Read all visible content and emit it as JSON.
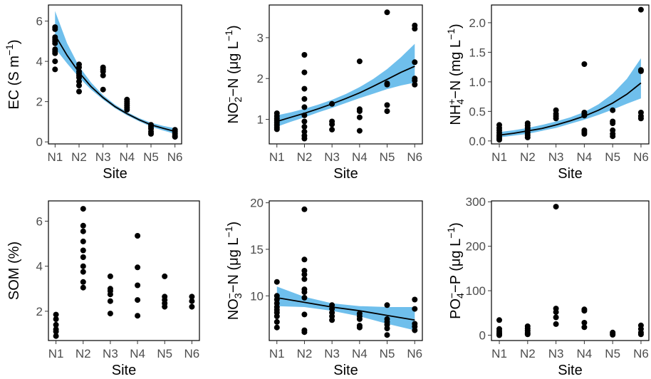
{
  "chart_data": [
    {
      "type": "scatter",
      "xlabel": "Site",
      "ylabel": {
        "pre": "EC (S m",
        "sup": "−1",
        "post": ")"
      },
      "categories": [
        "N1",
        "N2",
        "N3",
        "N4",
        "N5",
        "N6"
      ],
      "ylim": [
        -0.1,
        6.8
      ],
      "yticks": [
        0,
        2,
        4,
        6
      ],
      "points": [
        [
          1,
          5.7
        ],
        [
          1,
          5.6
        ],
        [
          1,
          5.2
        ],
        [
          1,
          5.1
        ],
        [
          1,
          5.0
        ],
        [
          1,
          4.9
        ],
        [
          1,
          4.6
        ],
        [
          1,
          4.5
        ],
        [
          1,
          4.4
        ],
        [
          1,
          4.0
        ],
        [
          1,
          3.6
        ],
        [
          2,
          3.85
        ],
        [
          2,
          3.7
        ],
        [
          2,
          3.5
        ],
        [
          2,
          3.4
        ],
        [
          2,
          3.3
        ],
        [
          2,
          3.2
        ],
        [
          2,
          3.0
        ],
        [
          2,
          2.8
        ],
        [
          2,
          2.5
        ],
        [
          3,
          3.7
        ],
        [
          3,
          3.6
        ],
        [
          3,
          3.5
        ],
        [
          3,
          3.3
        ],
        [
          3,
          2.6
        ],
        [
          4,
          2.1
        ],
        [
          4,
          2.0
        ],
        [
          4,
          1.9
        ],
        [
          4,
          1.8
        ],
        [
          4,
          1.7
        ],
        [
          4,
          1.6
        ],
        [
          5,
          0.85
        ],
        [
          5,
          0.75
        ],
        [
          5,
          0.65
        ],
        [
          5,
          0.5
        ],
        [
          5,
          0.4
        ],
        [
          6,
          0.6
        ],
        [
          6,
          0.5
        ],
        [
          6,
          0.4
        ],
        [
          6,
          0.3
        ],
        [
          6,
          0.25
        ]
      ],
      "fit": {
        "x": [
          1,
          1.5,
          2,
          2.5,
          3,
          3.5,
          4,
          4.5,
          5,
          5.5,
          6
        ],
        "y": [
          5.3,
          4.3,
          3.45,
          2.75,
          2.2,
          1.75,
          1.4,
          1.1,
          0.85,
          0.68,
          0.52
        ]
      },
      "ribbon": {
        "x": [
          1,
          1.5,
          2,
          2.5,
          3,
          3.5,
          4,
          4.5,
          5,
          5.5,
          6
        ],
        "lo": [
          4.65,
          3.9,
          3.2,
          2.6,
          2.1,
          1.67,
          1.32,
          1.02,
          0.76,
          0.57,
          0.4
        ],
        "hi": [
          6.5,
          4.9,
          3.75,
          2.95,
          2.32,
          1.85,
          1.48,
          1.18,
          0.95,
          0.8,
          0.68
        ]
      }
    },
    {
      "type": "scatter",
      "xlabel": "Site",
      "ylabel": {
        "pre": "NO",
        "sub": "2",
        "sup": "−",
        "post": "−N (μg L",
        "sup2": "−1",
        "post2": ")"
      },
      "categories": [
        "N1",
        "N2",
        "N3",
        "N4",
        "N5",
        "N6"
      ],
      "ylim": [
        0.4,
        3.8
      ],
      "yticks": [
        1,
        2,
        3
      ],
      "points": [
        [
          1,
          1.15
        ],
        [
          1,
          1.08
        ],
        [
          1,
          1.02
        ],
        [
          1,
          0.98
        ],
        [
          1,
          0.93
        ],
        [
          1,
          0.88
        ],
        [
          1,
          0.85
        ],
        [
          1,
          0.8
        ],
        [
          1,
          0.76
        ],
        [
          2,
          2.58
        ],
        [
          2,
          2.15
        ],
        [
          2,
          1.75
        ],
        [
          2,
          1.5
        ],
        [
          2,
          1.3
        ],
        [
          2,
          1.1
        ],
        [
          2,
          0.95
        ],
        [
          2,
          0.82
        ],
        [
          2,
          0.7
        ],
        [
          2,
          0.6
        ],
        [
          2,
          0.53
        ],
        [
          3,
          1.38
        ],
        [
          3,
          0.95
        ],
        [
          3,
          0.88
        ],
        [
          3,
          0.75
        ],
        [
          4,
          2.42
        ],
        [
          4,
          1.25
        ],
        [
          4,
          1.2
        ],
        [
          4,
          1.05
        ],
        [
          4,
          0.72
        ],
        [
          5,
          3.62
        ],
        [
          5,
          1.88
        ],
        [
          5,
          1.85
        ],
        [
          5,
          1.35
        ],
        [
          5,
          1.2
        ],
        [
          6,
          3.3
        ],
        [
          6,
          3.22
        ],
        [
          6,
          2.4
        ],
        [
          6,
          2.0
        ],
        [
          6,
          1.95
        ],
        [
          6,
          1.85
        ]
      ],
      "fit": {
        "x": [
          1,
          1.5,
          2,
          2.5,
          3,
          3.5,
          4,
          4.5,
          5,
          5.5,
          6
        ],
        "y": [
          0.95,
          1.05,
          1.15,
          1.26,
          1.38,
          1.51,
          1.65,
          1.81,
          1.98,
          2.15,
          2.3
        ]
      },
      "ribbon": {
        "x": [
          1,
          1.5,
          2,
          2.5,
          3,
          3.5,
          4,
          4.5,
          5,
          5.5,
          6
        ],
        "lo": [
          0.82,
          0.94,
          1.05,
          1.17,
          1.28,
          1.4,
          1.52,
          1.63,
          1.74,
          1.83,
          1.9
        ],
        "hi": [
          1.1,
          1.17,
          1.26,
          1.36,
          1.48,
          1.62,
          1.79,
          1.99,
          2.23,
          2.52,
          2.85
        ]
      }
    },
    {
      "type": "scatter",
      "xlabel": "Site",
      "ylabel": {
        "pre": "NH",
        "sub": "4",
        "sup": "+",
        "post": "−N (mg L",
        "sup2": "−1",
        "post2": ")"
      },
      "categories": [
        "N1",
        "N2",
        "N3",
        "N4",
        "N5",
        "N6"
      ],
      "ylim": [
        -0.05,
        2.3
      ],
      "yticks": [
        0.0,
        0.5,
        1.0,
        1.5,
        2.0
      ],
      "ytick_labels": [
        "0.0",
        "0.5",
        "1.0",
        "1.5",
        "2.0"
      ],
      "points": [
        [
          1,
          0.27
        ],
        [
          1,
          0.22
        ],
        [
          1,
          0.18
        ],
        [
          1,
          0.14
        ],
        [
          1,
          0.1
        ],
        [
          1,
          0.07
        ],
        [
          1,
          0.04
        ],
        [
          1,
          0.02
        ],
        [
          2,
          0.3
        ],
        [
          2,
          0.26
        ],
        [
          2,
          0.22
        ],
        [
          2,
          0.18
        ],
        [
          2,
          0.14
        ],
        [
          2,
          0.1
        ],
        [
          2,
          0.06
        ],
        [
          3,
          0.52
        ],
        [
          3,
          0.46
        ],
        [
          3,
          0.42
        ],
        [
          3,
          0.38
        ],
        [
          4,
          1.3
        ],
        [
          4,
          0.48
        ],
        [
          4,
          0.46
        ],
        [
          4,
          0.43
        ],
        [
          4,
          0.18
        ],
        [
          4,
          0.15
        ],
        [
          4,
          0.12
        ],
        [
          5,
          0.52
        ],
        [
          5,
          0.33
        ],
        [
          5,
          0.3
        ],
        [
          5,
          0.18
        ],
        [
          5,
          0.12
        ],
        [
          5,
          0.08
        ],
        [
          6,
          2.22
        ],
        [
          6,
          1.2
        ],
        [
          6,
          1.18
        ],
        [
          6,
          0.48
        ],
        [
          6,
          0.42
        ],
        [
          6,
          0.38
        ]
      ],
      "fit": {
        "x": [
          1,
          1.5,
          2,
          2.5,
          3,
          3.5,
          4,
          4.5,
          5,
          5.5,
          6
        ],
        "y": [
          0.1,
          0.13,
          0.17,
          0.21,
          0.27,
          0.34,
          0.42,
          0.52,
          0.64,
          0.79,
          0.98
        ]
      },
      "ribbon": {
        "x": [
          1,
          1.5,
          2,
          2.5,
          3,
          3.5,
          4,
          4.5,
          5,
          5.5,
          6
        ],
        "lo": [
          0.06,
          0.09,
          0.12,
          0.17,
          0.22,
          0.29,
          0.36,
          0.44,
          0.53,
          0.63,
          0.72
        ],
        "hi": [
          0.15,
          0.18,
          0.22,
          0.27,
          0.33,
          0.4,
          0.49,
          0.62,
          0.8,
          1.05,
          1.4
        ]
      }
    },
    {
      "type": "scatter",
      "xlabel": "Site",
      "ylabel": {
        "pre": "SOM (%)"
      },
      "categories": [
        "N1",
        "N2",
        "N3",
        "N4",
        "N5",
        "N6"
      ],
      "ylim": [
        0.7,
        6.9
      ],
      "yticks": [
        2,
        4,
        6
      ],
      "points": [
        [
          1,
          1.85
        ],
        [
          1,
          1.65
        ],
        [
          1,
          1.4
        ],
        [
          1,
          1.2
        ],
        [
          1,
          1.1
        ],
        [
          1,
          0.9
        ],
        [
          2,
          6.55
        ],
        [
          2,
          5.8
        ],
        [
          2,
          5.55
        ],
        [
          2,
          5.1
        ],
        [
          2,
          4.7
        ],
        [
          2,
          4.4
        ],
        [
          2,
          4.0
        ],
        [
          2,
          3.75
        ],
        [
          2,
          3.3
        ],
        [
          2,
          3.05
        ],
        [
          3,
          3.55
        ],
        [
          3,
          3.0
        ],
        [
          3,
          2.9
        ],
        [
          3,
          2.75
        ],
        [
          3,
          2.45
        ],
        [
          3,
          1.9
        ],
        [
          4,
          5.35
        ],
        [
          4,
          3.95
        ],
        [
          4,
          3.15
        ],
        [
          4,
          2.5
        ],
        [
          4,
          1.8
        ],
        [
          5,
          3.55
        ],
        [
          5,
          2.65
        ],
        [
          5,
          2.5
        ],
        [
          5,
          2.35
        ],
        [
          5,
          2.2
        ],
        [
          6,
          2.65
        ],
        [
          6,
          2.45
        ],
        [
          6,
          2.2
        ]
      ]
    },
    {
      "type": "scatter",
      "xlabel": "Site",
      "ylabel": {
        "pre": "NO",
        "sub": "3",
        "sup": "−",
        "post": "−N (μg L",
        "sup2": "−1",
        "post2": ")"
      },
      "categories": [
        "N1",
        "N2",
        "N3",
        "N4",
        "N5",
        "N6"
      ],
      "ylim": [
        5.2,
        20.2
      ],
      "yticks": [
        10,
        15,
        20
      ],
      "points": [
        [
          1,
          11.5
        ],
        [
          1,
          10.0
        ],
        [
          1,
          9.6
        ],
        [
          1,
          9.2
        ],
        [
          1,
          8.8
        ],
        [
          1,
          8.5
        ],
        [
          1,
          8.2
        ],
        [
          1,
          7.8
        ],
        [
          1,
          7.2
        ],
        [
          1,
          6.6
        ],
        [
          2,
          19.3
        ],
        [
          2,
          13.9
        ],
        [
          2,
          12.7
        ],
        [
          2,
          12.3
        ],
        [
          2,
          11.8
        ],
        [
          2,
          10.7
        ],
        [
          2,
          10.4
        ],
        [
          2,
          9.8
        ],
        [
          2,
          8.0
        ],
        [
          2,
          6.3
        ],
        [
          2,
          6.1
        ],
        [
          3,
          9.0
        ],
        [
          3,
          8.6
        ],
        [
          3,
          8.2
        ],
        [
          3,
          7.8
        ],
        [
          3,
          7.4
        ],
        [
          4,
          8.1
        ],
        [
          4,
          7.8
        ],
        [
          4,
          7.5
        ],
        [
          4,
          6.8
        ],
        [
          4,
          6.6
        ],
        [
          5,
          9.0
        ],
        [
          5,
          7.5
        ],
        [
          5,
          7.2
        ],
        [
          5,
          6.9
        ],
        [
          5,
          6.5
        ],
        [
          5,
          5.8
        ],
        [
          6,
          9.6
        ],
        [
          6,
          8.6
        ],
        [
          6,
          7.0
        ],
        [
          6,
          6.7
        ],
        [
          6,
          6.3
        ]
      ],
      "fit": {
        "x": [
          1,
          2,
          3,
          4,
          5,
          6
        ],
        "y": [
          9.8,
          9.3,
          8.8,
          8.4,
          7.9,
          7.4
        ]
      },
      "ribbon": {
        "x": [
          1,
          2,
          3,
          4,
          5,
          6
        ],
        "lo": [
          8.9,
          8.8,
          8.4,
          7.8,
          7.0,
          6.3
        ],
        "hi": [
          11.0,
          9.9,
          9.2,
          8.9,
          8.8,
          8.8
        ]
      }
    },
    {
      "type": "scatter",
      "xlabel": "Site",
      "ylabel": {
        "pre": "PO",
        "sub": "4",
        "sup": "−",
        "post": "−P (μg L",
        "sup2": "−1",
        "post2": ")"
      },
      "categories": [
        "N1",
        "N2",
        "N3",
        "N4",
        "N5",
        "N6"
      ],
      "ylim": [
        -12,
        302
      ],
      "yticks": [
        0,
        100,
        200,
        300
      ],
      "points": [
        [
          1,
          34
        ],
        [
          1,
          14
        ],
        [
          1,
          9
        ],
        [
          1,
          5
        ],
        [
          1,
          2
        ],
        [
          1,
          0
        ],
        [
          2,
          20
        ],
        [
          2,
          15
        ],
        [
          2,
          10
        ],
        [
          2,
          5
        ],
        [
          2,
          2
        ],
        [
          3,
          289
        ],
        [
          3,
          60
        ],
        [
          3,
          52
        ],
        [
          3,
          40
        ],
        [
          3,
          25
        ],
        [
          4,
          58
        ],
        [
          4,
          55
        ],
        [
          4,
          28
        ],
        [
          4,
          18
        ],
        [
          5,
          6
        ],
        [
          5,
          3
        ],
        [
          5,
          1
        ],
        [
          6,
          22
        ],
        [
          6,
          14
        ],
        [
          6,
          6
        ],
        [
          6,
          2
        ]
      ]
    }
  ]
}
